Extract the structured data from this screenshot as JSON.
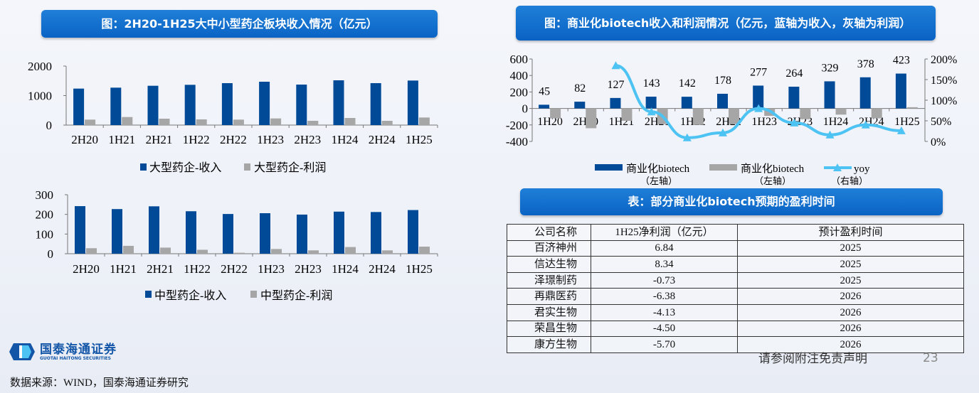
{
  "colors": {
    "revenue": "#004a98",
    "profit": "#a6a6a6",
    "yoy": "#4dc3f3",
    "banner": "#0f6cc8"
  },
  "titles": {
    "left": "图：2H20-1H25大中小型药企板块收入情况（亿元）",
    "right": "图：商业化biotech收入和利润情况（亿元，蓝轴为收入，灰轴为利润）",
    "table": "表：部分商业化biotech预期的盈利时间"
  },
  "chart_data": [
    {
      "type": "bar",
      "categories": [
        "2H20",
        "1H21",
        "2H21",
        "1H22",
        "2H22",
        "1H23",
        "2H23",
        "1H24",
        "2H24",
        "1H25"
      ],
      "ylim": [
        0,
        2000
      ],
      "yticks": [
        "0",
        "1000",
        "2000"
      ],
      "series": [
        {
          "name": "大型药企-收入",
          "values": [
            1237,
            1269,
            1333,
            1365,
            1422,
            1470,
            1373,
            1518,
            1422,
            1510
          ]
        },
        {
          "name": "大型药企-利润",
          "values": [
            185,
            273,
            217,
            193,
            185,
            225,
            145,
            241,
            145,
            257
          ]
        }
      ]
    },
    {
      "type": "bar",
      "categories": [
        "2H20",
        "1H21",
        "2H21",
        "1H22",
        "2H22",
        "1H23",
        "2H23",
        "1H24",
        "2H24",
        "1H25"
      ],
      "ylim": [
        0,
        300
      ],
      "yticks": [
        "0",
        "100",
        "200",
        "300"
      ],
      "series": [
        {
          "name": "中型药企-收入",
          "values": [
            242,
            227,
            241,
            216,
            202,
            206,
            199,
            214,
            212,
            222
          ]
        },
        {
          "name": "中型药企-利润",
          "values": [
            28,
            40,
            31,
            20,
            5,
            24,
            17,
            34,
            17,
            36
          ]
        }
      ]
    },
    {
      "type": "bar",
      "categories": [
        "1H20",
        "2H20",
        "1H21",
        "2H21",
        "1H22",
        "2H22",
        "1H23",
        "2H23",
        "1H24",
        "2H24",
        "1H25"
      ],
      "ylim": [
        -400,
        600
      ],
      "yticks": [
        "-400",
        "-200",
        "0",
        "200",
        "400",
        "600"
      ],
      "y2lim": [
        0,
        200
      ],
      "y2ticks": [
        "0%",
        "50%",
        "100%",
        "150%",
        "200%"
      ],
      "series": [
        {
          "name": "商业化biotech",
          "axis_note": "（左轴）",
          "values": [
            45,
            82,
            127,
            143,
            142,
            178,
            277,
            264,
            329,
            378,
            423
          ],
          "labels": [
            "45",
            "82",
            "127",
            "143",
            "142",
            "178",
            "277",
            "264",
            "329",
            "378",
            "423"
          ]
        },
        {
          "name": "商业化biotech",
          "axis_note": "（左轴）",
          "values": [
            -120,
            -240,
            -150,
            -190,
            -200,
            -190,
            -90,
            -130,
            -75,
            -120,
            15
          ]
        },
        {
          "name": "yoy",
          "axis_note": "（右轴）",
          "type": "line",
          "values": [
            null,
            null,
            184,
            72,
            9,
            21,
            80,
            45,
            16,
            40,
            26
          ]
        }
      ]
    }
  ],
  "table": {
    "headers": [
      "公司名称",
      "1H25净利润（亿元）",
      "预计盈利时间"
    ],
    "rows": [
      [
        "百济神州",
        "6.84",
        "2025"
      ],
      [
        "信达生物",
        "8.34",
        "2025"
      ],
      [
        "泽璟制药",
        "-0.73",
        "2025"
      ],
      [
        "再鼎医药",
        "-6.38",
        "2026"
      ],
      [
        "君实生物",
        "-4.13",
        "2026"
      ],
      [
        "荣昌生物",
        "-4.50",
        "2026"
      ],
      [
        "康方生物",
        "-5.70",
        "2026"
      ]
    ]
  },
  "footer": {
    "source": "数据来源：WIND，国泰海通证券研究",
    "disclaimer": "请参阅附注免责声明",
    "page": "23",
    "logo_cn": "国泰海通证券",
    "logo_en": "GUOTAI HAITONG SECURITIES"
  }
}
